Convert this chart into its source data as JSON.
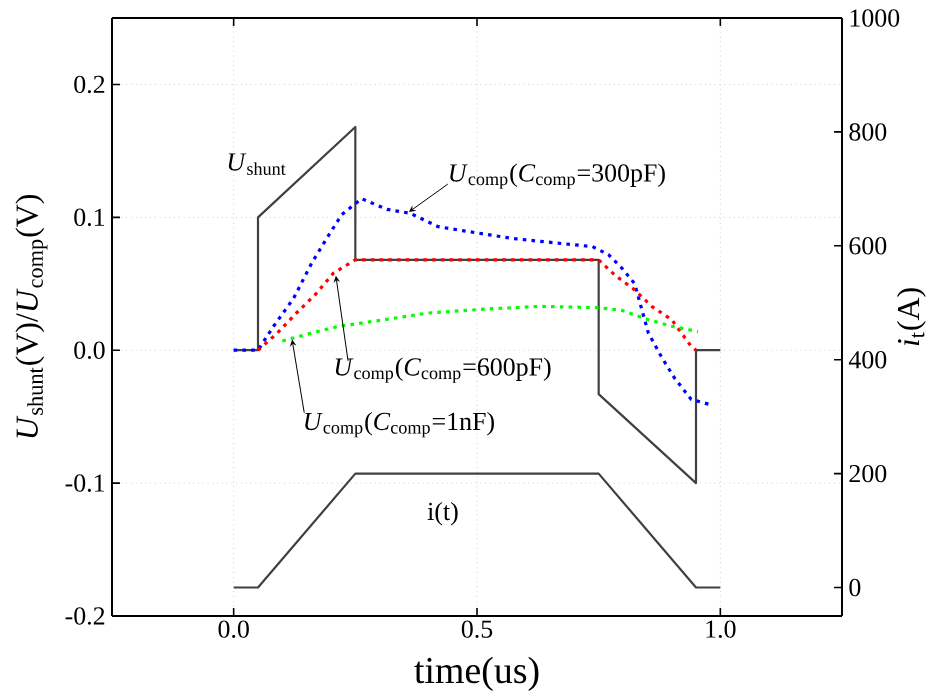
{
  "chart_data": {
    "type": "line",
    "xlabel": "time(us)",
    "ylabel": "*U*$_{shunt}$(V)/*U*$_{comp}$(V)",
    "y2label": "*i*$_{t}$(A)",
    "xlim": [
      -0.25,
      1.25
    ],
    "xticks": [
      {
        "value": 0,
        "label": "0.0"
      },
      {
        "value": 0.5,
        "label": "0.5"
      },
      {
        "value": 1,
        "label": "1.0"
      }
    ],
    "ylim": [
      -0.2,
      0.25
    ],
    "yticks": [
      {
        "value": -0.2,
        "label": "-0.2"
      },
      {
        "value": -0.1,
        "label": "-0.1"
      },
      {
        "value": 0,
        "label": "0.0"
      },
      {
        "value": 0.1,
        "label": "0.1"
      },
      {
        "value": 0.2,
        "label": "0.2"
      }
    ],
    "y2lim": [
      -50,
      1000
    ],
    "y2ticks": [
      {
        "value": 0,
        "label": "0"
      },
      {
        "value": 200,
        "label": "200"
      },
      {
        "value": 400,
        "label": "400"
      },
      {
        "value": 600,
        "label": "600"
      },
      {
        "value": 800,
        "label": "800"
      },
      {
        "value": 1000,
        "label": "1000"
      }
    ],
    "grid": true,
    "marker": "none",
    "series": [
      {
        "name": "*U*$_{shunt}$",
        "color": "#404040",
        "line_style": "solid",
        "x": [
          0,
          0.05,
          0.05,
          0.25,
          0.25,
          0.75,
          0.75,
          0.95,
          0.95,
          1.0
        ],
        "values": [
          0,
          0,
          0.1,
          0.168,
          0.068,
          0.068,
          -0.033,
          -0.1,
          0,
          0
        ]
      },
      {
        "name": "i(t)",
        "color": "#404040",
        "line_style": "solid",
        "axis": "y2",
        "x": [
          0,
          0.05,
          0.25,
          0.75,
          0.95,
          1.0
        ],
        "values": [
          0,
          0,
          200,
          200,
          0,
          0
        ]
      },
      {
        "name": "*U*$_{comp}$(*C*$_{comp}$=300pF)",
        "color": "#0000ff",
        "line_style": "dotted",
        "x": [
          0,
          0.05,
          0.082,
          0.123,
          0.161,
          0.196,
          0.222,
          0.263,
          0.315,
          0.363,
          0.42,
          0.47,
          0.575,
          0.682,
          0.737,
          0.77,
          0.797,
          0.824,
          0.852,
          0.879,
          0.906,
          0.94,
          0.98
        ],
        "values": [
          0,
          0,
          0.018,
          0.039,
          0.066,
          0.087,
          0.102,
          0.114,
          0.106,
          0.103,
          0.093,
          0.09,
          0.084,
          0.08,
          0.078,
          0.072,
          0.062,
          0.05,
          0.013,
          -0.005,
          -0.021,
          -0.037,
          -0.041
        ]
      },
      {
        "name": "*U*$_{comp}$(*C*$_{comp}$=600pF)",
        "color": "#ff0000",
        "line_style": "dotted",
        "x": [
          0.05,
          0.09,
          0.129,
          0.168,
          0.205,
          0.25,
          0.5,
          0.75,
          0.785,
          0.822,
          0.859,
          0.9,
          0.94,
          0.95
        ],
        "values": [
          0,
          0.013,
          0.028,
          0.042,
          0.058,
          0.068,
          0.068,
          0.068,
          0.056,
          0.046,
          0.033,
          0.023,
          0.003,
          0
        ]
      },
      {
        "name": "*U*$_{comp}$(*C*$_{comp}$=1nF)",
        "color": "#00ff00",
        "line_style": "dotted",
        "x": [
          0.1,
          0.161,
          0.216,
          0.31,
          0.4,
          0.52,
          0.63,
          0.75,
          0.797,
          0.852,
          0.9,
          0.954
        ],
        "values": [
          0.007,
          0.013,
          0.018,
          0.023,
          0.028,
          0.031,
          0.033,
          0.032,
          0.03,
          0.023,
          0.018,
          0.014
        ]
      }
    ]
  }
}
